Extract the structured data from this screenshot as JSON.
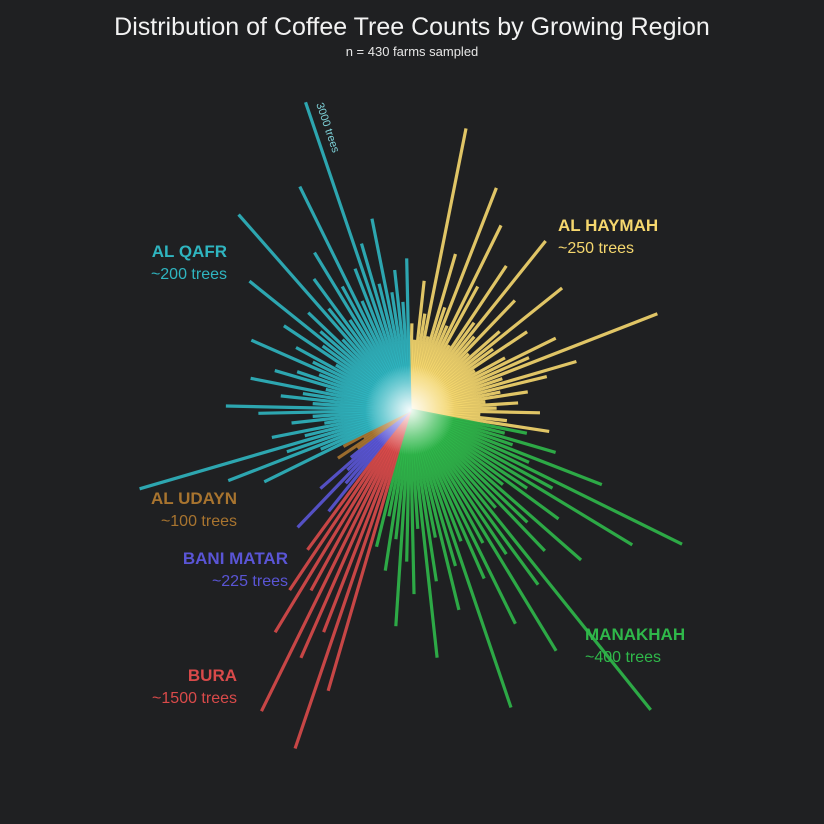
{
  "chart_data": {
    "type": "radial-bar",
    "title": "Distribution of Coffee Tree Counts by Growing Region",
    "subtitle": "n = 430 farms sampled",
    "annotation": "3000 trees",
    "rlim": [
      0,
      3600
    ],
    "series": [
      {
        "name": "AL HAYMAH",
        "label": "~250 trees",
        "color": "#f5d76e",
        "values": [
          800,
          650,
          1200,
          900,
          2650,
          700,
          1500,
          1000,
          2200,
          850,
          1900,
          1300,
          700,
          1600,
          1000,
          2000,
          900,
          1400,
          750,
          1100,
          1800,
          950,
          1300,
          700,
          1000,
          1500,
          1200,
          2450,
          900,
          1600,
          1300,
          850,
          1100,
          700,
          1000,
          800,
          1200,
          650,
          900,
          1300
        ]
      },
      {
        "name": "MANAKHAH",
        "label": "~400 trees",
        "color": "#2fb84a",
        "values": [
          1100,
          900,
          1400,
          1000,
          1900,
          1200,
          2800,
          1500,
          2400,
          1300,
          1700,
          1100,
          2100,
          1500,
          1800,
          1200,
          3550,
          2000,
          1600,
          2600,
          1400,
          2200,
          1700,
          1300,
          2900,
          1500,
          1900,
          1200,
          1600,
          2300,
          1100,
          1700,
          1400,
          2000,
          1200,
          1500,
          1000,
          1300
        ]
      },
      {
        "name": "BURA",
        "label": "~1500 trees",
        "color": "#d94a4a",
        "values": [
          2700,
          3300,
          2200,
          2500,
          3100,
          1900,
          2400,
          2000,
          1600
        ]
      },
      {
        "name": "BANI MATAR",
        "label": "~225 trees",
        "color": "#5a55d6",
        "values": [
          1200,
          900,
          1500,
          800,
          1100,
          700
        ]
      },
      {
        "name": "AL UDAYN",
        "label": "~100 trees",
        "color": "#a8742f",
        "values": [
          600,
          800,
          500,
          700
        ]
      },
      {
        "name": "AL QAFR",
        "label": "~200 trees",
        "color": "#2fb5c0",
        "values": [
          1500,
          900,
          1800,
          1200,
          2600,
          1000,
          1300,
          800,
          1100,
          900,
          1400,
          1700,
          900,
          1200,
          1000,
          1500,
          800,
          1300,
          1100,
          900,
          1600,
          1000,
          1200,
          800,
          1400,
          1000,
          1900,
          1100,
          1300,
          900,
          2400,
          1200,
          1500,
          1000,
          1700,
          1300,
          2300,
          1100,
          1400,
          3000,
          1600,
          1200,
          1800,
          1100,
          1300,
          1000,
          1400
        ]
      }
    ]
  }
}
